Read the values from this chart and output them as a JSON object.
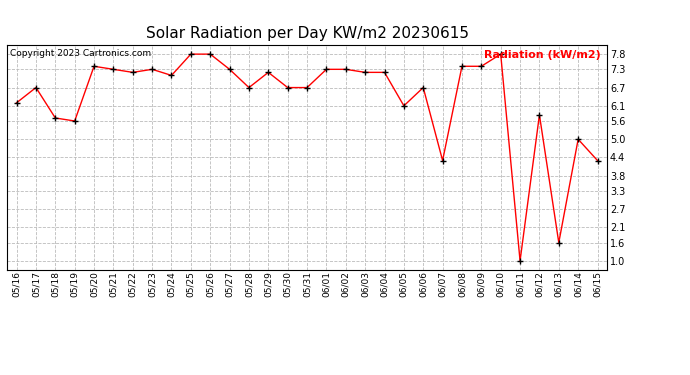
{
  "title": "Solar Radiation per Day KW/m2 20230615",
  "copyright": "Copyright 2023 Cartronics.com",
  "ylabel": "Radiation (kW/m2)",
  "ylabel_color": "#ff0000",
  "line_color": "#ff0000",
  "marker_color": "#000000",
  "background_color": "#ffffff",
  "grid_color": "#bbbbbb",
  "ylim": [
    0.7,
    8.1
  ],
  "yticks": [
    1.0,
    1.6,
    2.1,
    2.7,
    3.3,
    3.8,
    4.4,
    5.0,
    5.6,
    6.1,
    6.7,
    7.3,
    7.8
  ],
  "dates": [
    "05/16",
    "05/17",
    "05/18",
    "05/19",
    "05/20",
    "05/21",
    "05/22",
    "05/23",
    "05/24",
    "05/25",
    "05/26",
    "05/27",
    "05/28",
    "05/29",
    "05/30",
    "05/31",
    "06/01",
    "06/02",
    "06/03",
    "06/04",
    "06/05",
    "06/06",
    "06/07",
    "06/08",
    "06/09",
    "06/10",
    "06/11",
    "06/12",
    "06/13",
    "06/14",
    "06/15"
  ],
  "values": [
    6.2,
    6.7,
    5.7,
    5.6,
    7.4,
    7.3,
    7.2,
    7.3,
    7.1,
    7.8,
    7.8,
    7.3,
    6.7,
    7.2,
    6.7,
    6.7,
    7.3,
    7.3,
    7.2,
    7.2,
    6.1,
    6.7,
    4.3,
    7.4,
    7.4,
    7.8,
    1.0,
    5.8,
    1.6,
    5.0,
    4.3
  ],
  "figsize": [
    6.9,
    3.75
  ],
  "dpi": 100
}
